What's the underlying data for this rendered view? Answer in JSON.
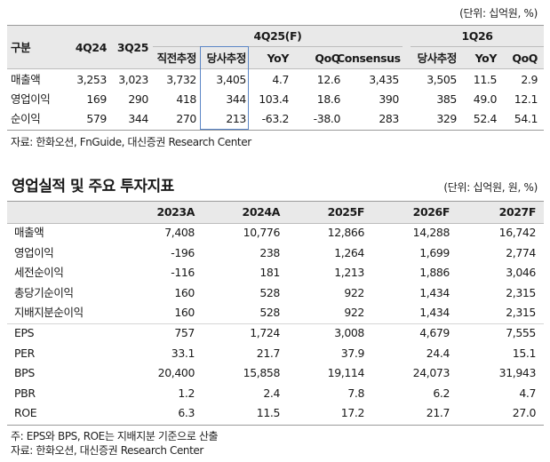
{
  "table1": {
    "unit": "(단위: 십억원, %)",
    "header_group": {
      "corner": "구분",
      "col1": "4Q24",
      "col2": "3Q25",
      "group1": "4Q25(F)",
      "group2": "1Q26"
    },
    "subheaders": [
      "직전추정",
      "당사추정",
      "YoY",
      "QoQ",
      "Consensus",
      "당사추정",
      "YoY",
      "QoQ"
    ],
    "rows": [
      {
        "label": "매출액",
        "values": [
          "3,253",
          "3,023",
          "3,732",
          "3,405",
          "4.7",
          "12.6",
          "3,435",
          "3,505",
          "11.5",
          "2.9"
        ]
      },
      {
        "label": "영업이익",
        "values": [
          "169",
          "290",
          "418",
          "344",
          "103.4",
          "18.6",
          "390",
          "385",
          "49.0",
          "12.1"
        ]
      },
      {
        "label": "순이익",
        "values": [
          "579",
          "344",
          "270",
          "213",
          "-63.2",
          "-38.0",
          "283",
          "329",
          "52.4",
          "54.1"
        ]
      }
    ],
    "source": "자료: 한화오션, FnGuide, 대신증권 Research Center"
  },
  "table2": {
    "title": "영업실적 및 주요 투자지표",
    "unit": "(단위: 십억원, 원, %)",
    "years": [
      "2023A",
      "2024A",
      "2025F",
      "2026F",
      "2027F"
    ],
    "rows": [
      {
        "label": "매출액",
        "values": [
          "7,408",
          "10,776",
          "12,866",
          "14,288",
          "16,742"
        ]
      },
      {
        "label": "영업이익",
        "values": [
          "-196",
          "238",
          "1,264",
          "1,699",
          "2,774"
        ]
      },
      {
        "label": "세전순이익",
        "values": [
          "-116",
          "181",
          "1,213",
          "1,886",
          "3,046"
        ]
      },
      {
        "label": "총당기순이익",
        "values": [
          "160",
          "528",
          "922",
          "1,434",
          "2,315"
        ]
      },
      {
        "label": "지배지분순이익",
        "values": [
          "160",
          "528",
          "922",
          "1,434",
          "2,315"
        ]
      },
      {
        "label": "EPS",
        "values": [
          "757",
          "1,724",
          "3,008",
          "4,679",
          "7,555"
        ]
      },
      {
        "label": "PER",
        "values": [
          "33.1",
          "21.7",
          "37.9",
          "24.4",
          "15.1"
        ]
      },
      {
        "label": "BPS",
        "values": [
          "20,400",
          "15,858",
          "19,114",
          "24,073",
          "31,943"
        ]
      },
      {
        "label": "PBR",
        "values": [
          "1.2",
          "2.4",
          "7.8",
          "6.2",
          "4.7"
        ]
      },
      {
        "label": "ROE",
        "values": [
          "6.3",
          "11.5",
          "17.2",
          "21.7",
          "27.0"
        ]
      }
    ],
    "note": "주: EPS와 BPS, ROE는 지배지분 기준으로 산출",
    "source": "자료: 한화오션, 대신증권 Research Center"
  }
}
